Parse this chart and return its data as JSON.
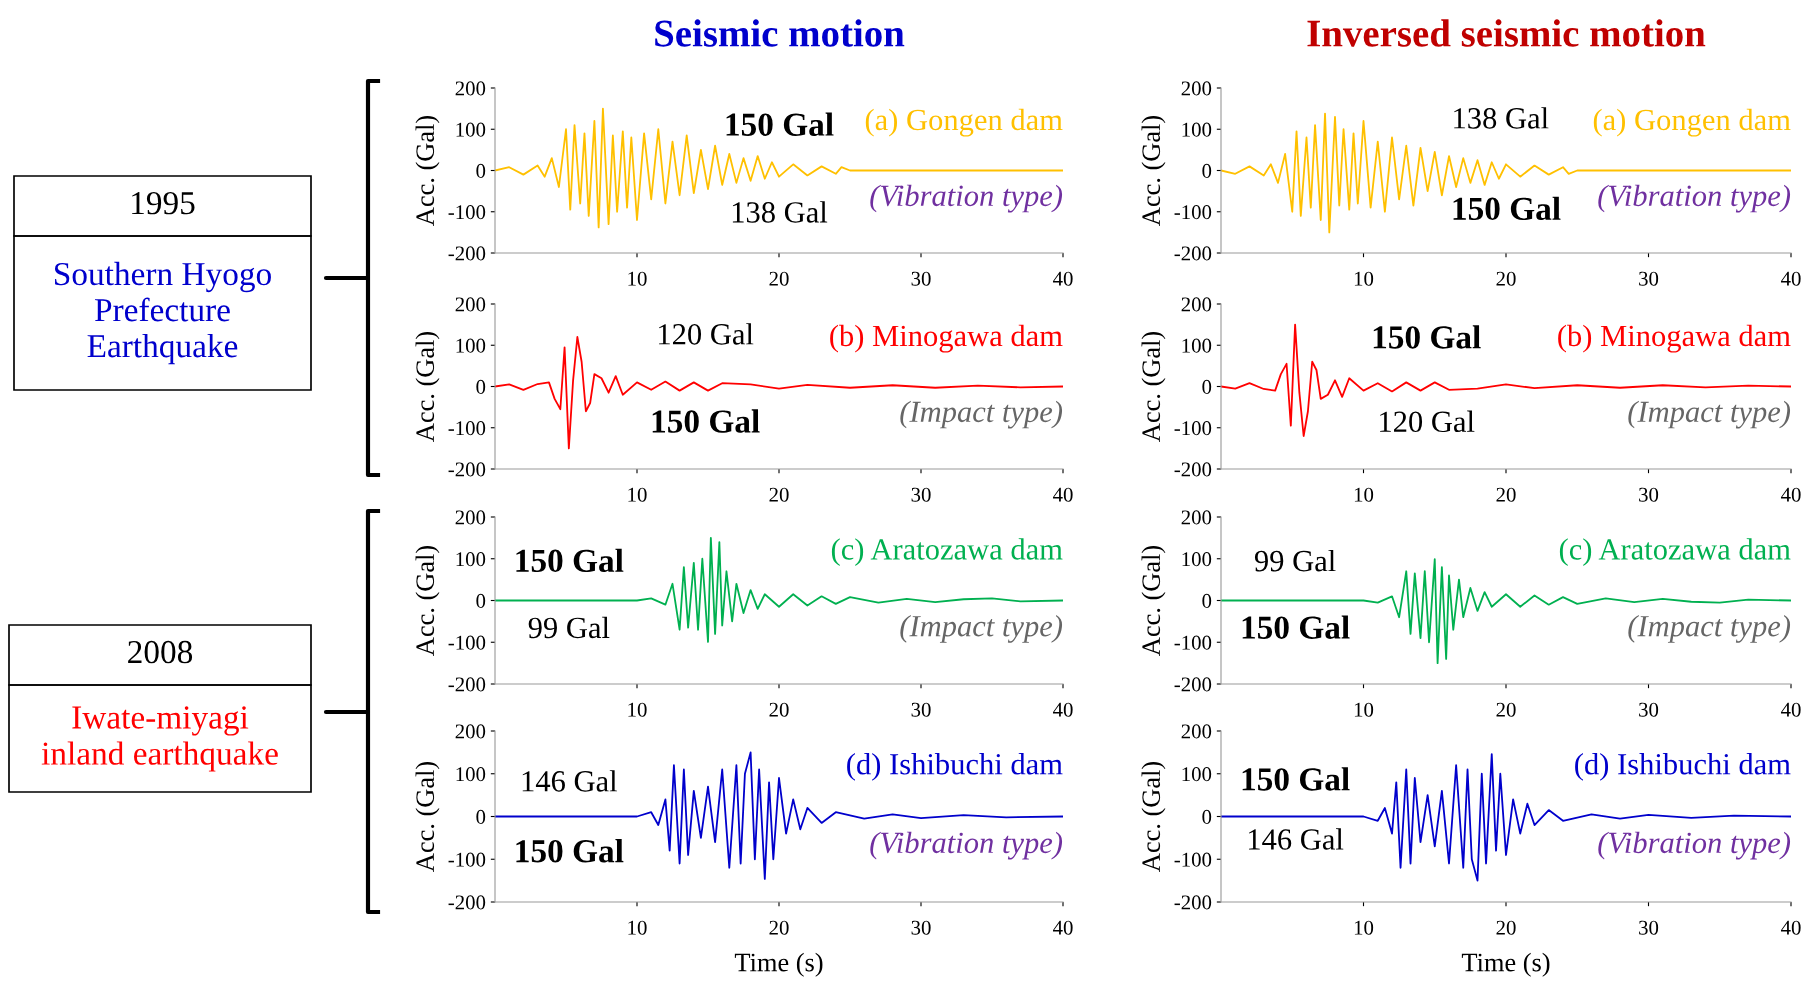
{
  "chart_data": [
    {
      "type": "line",
      "title": "Seismic motion",
      "ylabel": "Acc. (Gal)",
      "xlim": [
        0,
        40
      ],
      "xticks": [
        10,
        20,
        30,
        40
      ],
      "ylim": [
        -200,
        200
      ],
      "yticks": [
        -200,
        -100,
        0,
        100,
        200
      ],
      "grid": false,
      "legend": false,
      "marker": "none",
      "line_style": "solid",
      "annotations": [
        "150 Gal",
        "138 Gal",
        "(a) Gongen dam",
        "(Vibration type)",
        "1995",
        "Southern Hyogo\nPrefecture\nEarthquake"
      ],
      "series": [
        {
          "color": "#ffc000",
          "x": [
            0,
            1,
            2,
            3,
            3.5,
            4,
            4.5,
            5,
            5.3,
            5.6,
            6,
            6.3,
            6.6,
            7,
            7.3,
            7.6,
            8,
            8.3,
            8.6,
            9,
            9.3,
            9.6,
            10,
            10.5,
            11,
            11.5,
            12,
            12.5,
            13,
            13.5,
            14,
            14.5,
            15,
            15.5,
            16,
            16.5,
            17,
            17.5,
            18,
            18.5,
            19,
            19.5,
            20,
            21,
            22,
            23,
            24,
            24.4,
            25,
            40
          ],
          "values": [
            0,
            8,
            -10,
            12,
            -15,
            30,
            -40,
            100,
            -95,
            110,
            -80,
            90,
            -110,
            120,
            -138,
            150,
            -130,
            85,
            -100,
            95,
            -90,
            80,
            -120,
            90,
            -70,
            100,
            -80,
            70,
            -60,
            85,
            -55,
            50,
            -45,
            60,
            -35,
            40,
            -30,
            30,
            -25,
            35,
            -20,
            20,
            -15,
            15,
            -12,
            10,
            -8,
            8,
            0,
            0
          ]
        }
      ]
    },
    {
      "type": "line",
      "title": "Inversed seismic motion",
      "ylabel": "Acc. (Gal)",
      "xlim": [
        0,
        40
      ],
      "xticks": [
        10,
        20,
        30,
        40
      ],
      "ylim": [
        -200,
        200
      ],
      "yticks": [
        -200,
        -100,
        0,
        100,
        200
      ],
      "grid": false,
      "legend": false,
      "marker": "none",
      "line_style": "solid",
      "annotations": [
        "138 Gal",
        "150 Gal",
        "(a) Gongen dam",
        "(Vibration type)"
      ],
      "series": [
        {
          "color": "#ffc000",
          "x": [
            0,
            1,
            2,
            3,
            3.5,
            4,
            4.5,
            5,
            5.3,
            5.6,
            6,
            6.3,
            6.6,
            7,
            7.3,
            7.6,
            8,
            8.3,
            8.6,
            9,
            9.3,
            9.6,
            10,
            10.5,
            11,
            11.5,
            12,
            12.5,
            13,
            13.5,
            14,
            14.5,
            15,
            15.5,
            16,
            16.5,
            17,
            17.5,
            18,
            18.5,
            19,
            19.5,
            20,
            21,
            22,
            23,
            24,
            24.4,
            25,
            40
          ],
          "values": [
            0,
            -8,
            10,
            -12,
            15,
            -30,
            40,
            -100,
            95,
            -110,
            80,
            -90,
            110,
            -120,
            138,
            -150,
            130,
            -85,
            100,
            -95,
            90,
            -80,
            120,
            -90,
            70,
            -100,
            80,
            -70,
            60,
            -85,
            55,
            -50,
            45,
            -60,
            35,
            -40,
            30,
            -30,
            25,
            -35,
            20,
            -20,
            15,
            -15,
            12,
            -10,
            8,
            -8,
            0,
            0
          ]
        }
      ]
    },
    {
      "type": "line",
      "ylabel": "Acc. (Gal)",
      "xlim": [
        0,
        40
      ],
      "xticks": [
        10,
        20,
        30,
        40
      ],
      "ylim": [
        -200,
        200
      ],
      "yticks": [
        -200,
        -100,
        0,
        100,
        200
      ],
      "grid": false,
      "legend": false,
      "marker": "none",
      "line_style": "solid",
      "annotations": [
        "120 Gal",
        "150 Gal",
        "(b) Minogawa dam",
        "(Impact type)"
      ],
      "series": [
        {
          "color": "#ff0000",
          "x": [
            0,
            1,
            2,
            3,
            3.8,
            4.2,
            4.6,
            4.9,
            5.2,
            5.5,
            5.8,
            6.1,
            6.4,
            6.7,
            7,
            7.5,
            8,
            8.5,
            9,
            10,
            11,
            12,
            13,
            14,
            15,
            16,
            18,
            20,
            22,
            25,
            28,
            31,
            34,
            37,
            40
          ],
          "values": [
            0,
            5,
            -8,
            6,
            10,
            -30,
            -55,
            95,
            -150,
            15,
            120,
            60,
            -60,
            -40,
            30,
            20,
            -15,
            25,
            -20,
            10,
            -8,
            12,
            -10,
            10,
            -10,
            8,
            5,
            -5,
            4,
            -3,
            3,
            -3,
            2,
            -2,
            0
          ]
        }
      ]
    },
    {
      "type": "line",
      "ylabel": "Acc. (Gal)",
      "xlim": [
        0,
        40
      ],
      "xticks": [
        10,
        20,
        30,
        40
      ],
      "ylim": [
        -200,
        200
      ],
      "yticks": [
        -200,
        -100,
        0,
        100,
        200
      ],
      "grid": false,
      "legend": false,
      "marker": "none",
      "line_style": "solid",
      "annotations": [
        "150 Gal",
        "120 Gal",
        "(b) Minogawa dam",
        "(Impact type)"
      ],
      "series": [
        {
          "color": "#ff0000",
          "x": [
            0,
            1,
            2,
            3,
            3.8,
            4.2,
            4.6,
            4.9,
            5.2,
            5.5,
            5.8,
            6.1,
            6.4,
            6.7,
            7,
            7.5,
            8,
            8.5,
            9,
            10,
            11,
            12,
            13,
            14,
            15,
            16,
            18,
            20,
            22,
            25,
            28,
            31,
            34,
            37,
            40
          ],
          "values": [
            0,
            -5,
            8,
            -6,
            -10,
            30,
            55,
            -95,
            150,
            -15,
            -120,
            -60,
            60,
            40,
            -30,
            -20,
            15,
            -25,
            20,
            -10,
            8,
            -12,
            10,
            -10,
            10,
            -8,
            -5,
            5,
            -4,
            3,
            -3,
            3,
            -2,
            2,
            0
          ]
        }
      ]
    },
    {
      "type": "line",
      "ylabel": "Acc. (Gal)",
      "xlim": [
        0,
        40
      ],
      "xticks": [
        10,
        20,
        30,
        40
      ],
      "ylim": [
        -200,
        200
      ],
      "yticks": [
        -200,
        -100,
        0,
        100,
        200
      ],
      "grid": false,
      "legend": false,
      "marker": "none",
      "line_style": "solid",
      "annotations": [
        "150 Gal",
        "99 Gal",
        "(c) Aratozawa dam",
        "(Impact type)",
        "2008",
        "Iwate-miyagi\ninland earthquake"
      ],
      "series": [
        {
          "color": "#00b050",
          "x": [
            0,
            10,
            11,
            12,
            12.5,
            13,
            13.3,
            13.6,
            14,
            14.3,
            14.6,
            15,
            15.2,
            15.5,
            15.8,
            16,
            16.3,
            16.7,
            17,
            17.5,
            18,
            18.5,
            19,
            20,
            21,
            22,
            23,
            24,
            25,
            27,
            29,
            31,
            33,
            35,
            37,
            40
          ],
          "values": [
            0,
            0,
            5,
            -10,
            40,
            -70,
            80,
            -65,
            90,
            -70,
            100,
            -99,
            150,
            -80,
            140,
            -60,
            70,
            -50,
            40,
            -30,
            25,
            -20,
            15,
            -15,
            15,
            -12,
            10,
            -8,
            8,
            -5,
            4,
            -4,
            3,
            5,
            -2,
            0
          ]
        }
      ]
    },
    {
      "type": "line",
      "ylabel": "Acc. (Gal)",
      "xlim": [
        0,
        40
      ],
      "xticks": [
        10,
        20,
        30,
        40
      ],
      "ylim": [
        -200,
        200
      ],
      "yticks": [
        -200,
        -100,
        0,
        100,
        200
      ],
      "grid": false,
      "legend": false,
      "marker": "none",
      "line_style": "solid",
      "annotations": [
        "99 Gal",
        "150 Gal",
        "(c) Aratozawa dam",
        "(Impact type)"
      ],
      "series": [
        {
          "color": "#00b050",
          "x": [
            0,
            10,
            11,
            12,
            12.5,
            13,
            13.3,
            13.6,
            14,
            14.3,
            14.6,
            15,
            15.2,
            15.5,
            15.8,
            16,
            16.3,
            16.7,
            17,
            17.5,
            18,
            18.5,
            19,
            20,
            21,
            22,
            23,
            24,
            25,
            27,
            29,
            31,
            33,
            35,
            37,
            40
          ],
          "values": [
            0,
            0,
            -5,
            10,
            -40,
            70,
            -80,
            65,
            -90,
            70,
            -100,
            99,
            -150,
            80,
            -140,
            60,
            -70,
            50,
            -40,
            30,
            -25,
            20,
            -15,
            15,
            -15,
            12,
            -10,
            8,
            -8,
            5,
            -4,
            4,
            -3,
            -5,
            2,
            0
          ]
        }
      ]
    },
    {
      "type": "line",
      "xlabel": "Time (s)",
      "ylabel": "Acc. (Gal)",
      "xlim": [
        0,
        40
      ],
      "xticks": [
        10,
        20,
        30,
        40
      ],
      "ylim": [
        -200,
        200
      ],
      "yticks": [
        -200,
        -100,
        0,
        100,
        200
      ],
      "grid": false,
      "legend": false,
      "marker": "none",
      "line_style": "solid",
      "annotations": [
        "146 Gal",
        "150 Gal",
        "(d) Ishibuchi dam",
        "(Vibration type)"
      ],
      "series": [
        {
          "color": "#0000cc",
          "x": [
            0,
            10,
            11,
            11.5,
            12,
            12.3,
            12.6,
            13,
            13.3,
            13.6,
            14,
            14.5,
            15,
            15.5,
            16,
            16.5,
            17,
            17.3,
            17.6,
            18,
            18.3,
            18.6,
            19,
            19.3,
            19.6,
            20,
            20.5,
            21,
            21.5,
            22,
            23,
            24,
            26,
            28,
            30,
            33,
            36,
            40
          ],
          "values": [
            0,
            0,
            10,
            -20,
            40,
            -80,
            120,
            -110,
            110,
            -90,
            60,
            -50,
            70,
            -60,
            110,
            -120,
            120,
            -110,
            100,
            150,
            -100,
            110,
            -146,
            80,
            -100,
            90,
            -40,
            40,
            -30,
            20,
            -15,
            10,
            -5,
            5,
            -4,
            3,
            -2,
            0
          ]
        }
      ]
    },
    {
      "type": "line",
      "xlabel": "Time (s)",
      "ylabel": "Acc. (Gal)",
      "xlim": [
        0,
        40
      ],
      "xticks": [
        10,
        20,
        30,
        40
      ],
      "ylim": [
        -200,
        200
      ],
      "yticks": [
        -200,
        -100,
        0,
        100,
        200
      ],
      "grid": false,
      "legend": false,
      "marker": "none",
      "line_style": "solid",
      "annotations": [
        "150 Gal",
        "146 Gal",
        "(d) Ishibuchi dam",
        "(Vibration type)"
      ],
      "series": [
        {
          "color": "#0000cc",
          "x": [
            0,
            10,
            11,
            11.5,
            12,
            12.3,
            12.6,
            13,
            13.3,
            13.6,
            14,
            14.5,
            15,
            15.5,
            16,
            16.5,
            17,
            17.3,
            17.6,
            18,
            18.3,
            18.6,
            19,
            19.3,
            19.6,
            20,
            20.5,
            21,
            21.5,
            22,
            23,
            24,
            26,
            28,
            30,
            33,
            36,
            40
          ],
          "values": [
            0,
            0,
            -10,
            20,
            -40,
            80,
            -120,
            110,
            -110,
            90,
            -60,
            50,
            -70,
            60,
            -110,
            120,
            -120,
            110,
            -100,
            -150,
            100,
            -110,
            146,
            -80,
            100,
            -90,
            40,
            -40,
            30,
            -20,
            15,
            -10,
            5,
            -5,
            4,
            -3,
            2,
            0
          ]
        }
      ]
    }
  ]
}
